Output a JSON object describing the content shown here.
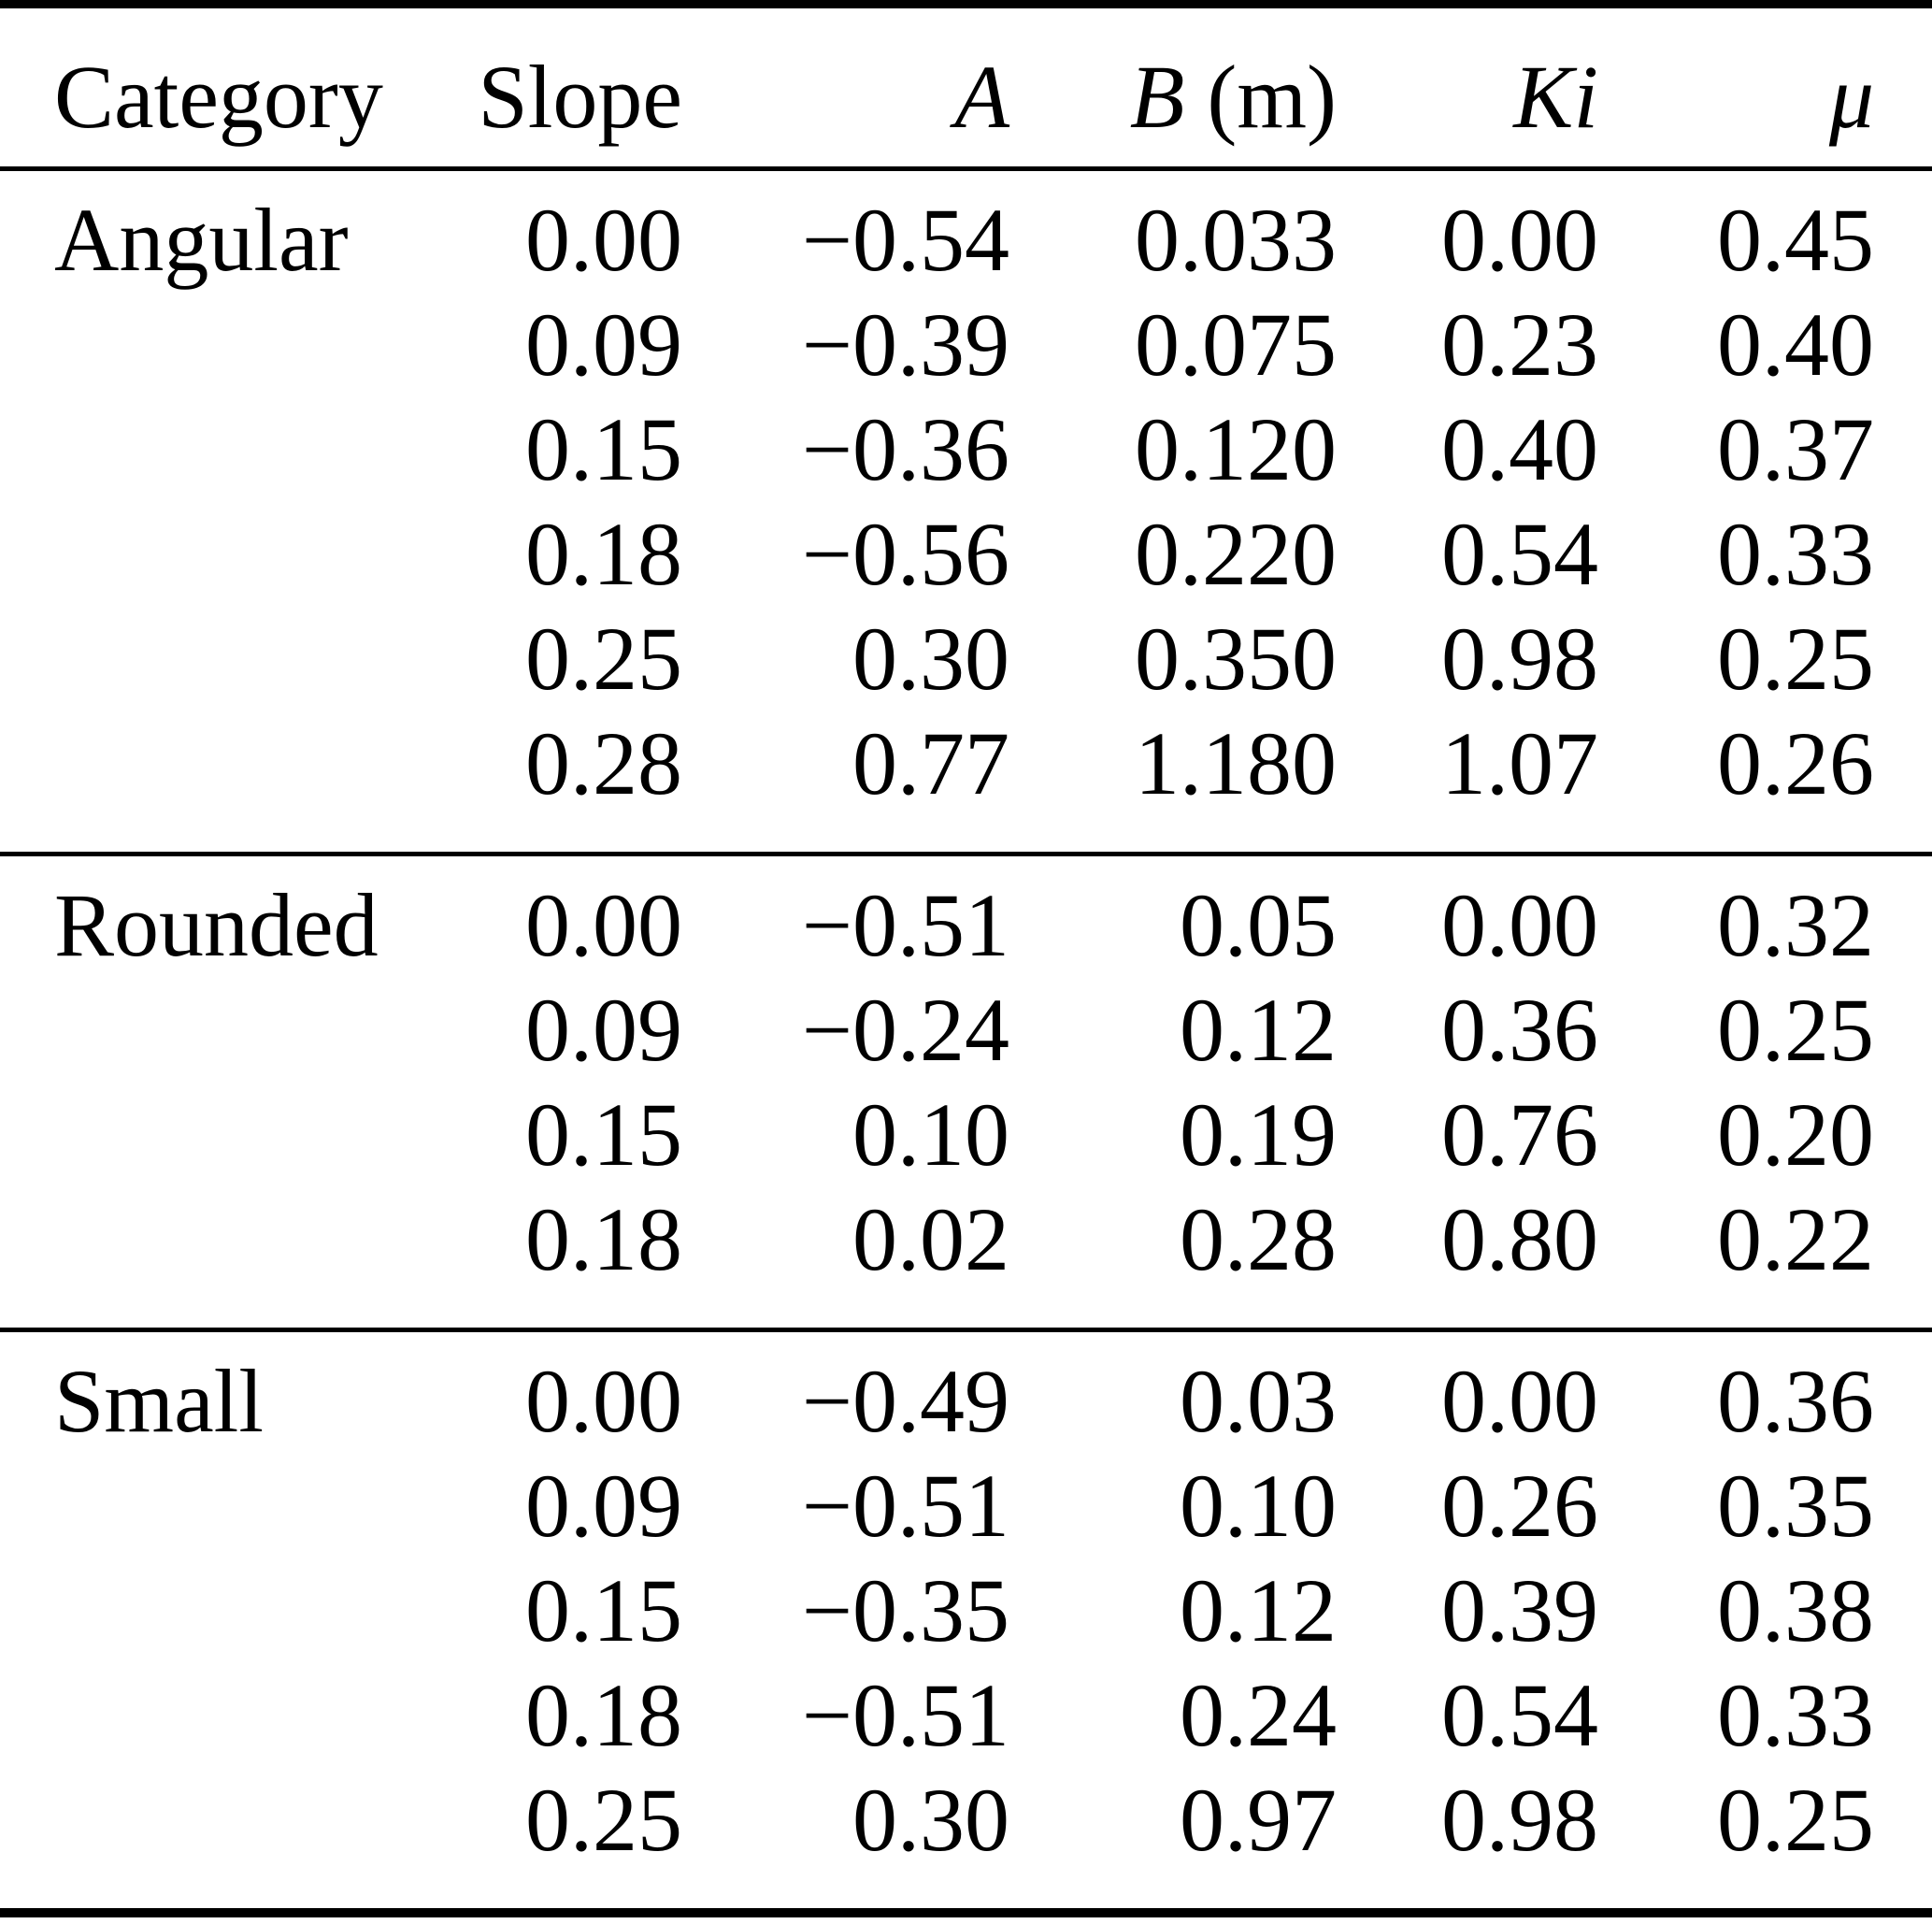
{
  "table": {
    "headers": [
      {
        "italic": "",
        "plain": "Category"
      },
      {
        "italic": "",
        "plain": "Slope"
      },
      {
        "italic": "A",
        "plain": ""
      },
      {
        "italic": "B",
        "plain": " (m)"
      },
      {
        "italic": "Ki",
        "plain": ""
      },
      {
        "italic": "μ",
        "plain": ""
      }
    ],
    "sections": [
      {
        "category": "Angular",
        "rows": [
          [
            "0.00",
            "−0.54",
            "0.033",
            "0.00",
            "0.45"
          ],
          [
            "0.09",
            "−0.39",
            "0.075",
            "0.23",
            "0.40"
          ],
          [
            "0.15",
            "−0.36",
            "0.120",
            "0.40",
            "0.37"
          ],
          [
            "0.18",
            "−0.56",
            "0.220",
            "0.54",
            "0.33"
          ],
          [
            "0.25",
            "0.30",
            "0.350",
            "0.98",
            "0.25"
          ],
          [
            "0.28",
            "0.77",
            "1.180",
            "1.07",
            "0.26"
          ]
        ]
      },
      {
        "category": "Rounded",
        "rows": [
          [
            "0.00",
            "−0.51",
            "0.05",
            "0.00",
            "0.32"
          ],
          [
            "0.09",
            "−0.24",
            "0.12",
            "0.36",
            "0.25"
          ],
          [
            "0.15",
            "0.10",
            "0.19",
            "0.76",
            "0.20"
          ],
          [
            "0.18",
            "0.02",
            "0.28",
            "0.80",
            "0.22"
          ]
        ]
      },
      {
        "category": "Small",
        "rows": [
          [
            "0.00",
            "−0.49",
            "0.03",
            "0.00",
            "0.36"
          ],
          [
            "0.09",
            "−0.51",
            "0.10",
            "0.26",
            "0.35"
          ],
          [
            "0.15",
            "−0.35",
            "0.12",
            "0.39",
            "0.38"
          ],
          [
            "0.18",
            "−0.51",
            "0.24",
            "0.54",
            "0.33"
          ],
          [
            "0.25",
            "0.30",
            "0.97",
            "0.98",
            "0.25"
          ]
        ]
      }
    ]
  },
  "colors": {
    "text": "#000000",
    "background": "#ffffff",
    "rule": "#000000"
  },
  "chart_data": {
    "type": "table",
    "columns": [
      "Category",
      "Slope",
      "A",
      "B (m)",
      "Ki",
      "μ"
    ],
    "rows": [
      [
        "Angular",
        0.0,
        -0.54,
        0.033,
        0.0,
        0.45
      ],
      [
        "Angular",
        0.09,
        -0.39,
        0.075,
        0.23,
        0.4
      ],
      [
        "Angular",
        0.15,
        -0.36,
        0.12,
        0.4,
        0.37
      ],
      [
        "Angular",
        0.18,
        -0.56,
        0.22,
        0.54,
        0.33
      ],
      [
        "Angular",
        0.25,
        0.3,
        0.35,
        0.98,
        0.25
      ],
      [
        "Angular",
        0.28,
        0.77,
        1.18,
        1.07,
        0.26
      ],
      [
        "Rounded",
        0.0,
        -0.51,
        0.05,
        0.0,
        0.32
      ],
      [
        "Rounded",
        0.09,
        -0.24,
        0.12,
        0.36,
        0.25
      ],
      [
        "Rounded",
        0.15,
        0.1,
        0.19,
        0.76,
        0.2
      ],
      [
        "Rounded",
        0.18,
        0.02,
        0.28,
        0.8,
        0.22
      ],
      [
        "Small",
        0.0,
        -0.49,
        0.03,
        0.0,
        0.36
      ],
      [
        "Small",
        0.09,
        -0.51,
        0.1,
        0.26,
        0.35
      ],
      [
        "Small",
        0.15,
        -0.35,
        0.12,
        0.39,
        0.38
      ],
      [
        "Small",
        0.18,
        -0.51,
        0.24,
        0.54,
        0.33
      ],
      [
        "Small",
        0.25,
        0.3,
        0.97,
        0.98,
        0.25
      ]
    ]
  }
}
